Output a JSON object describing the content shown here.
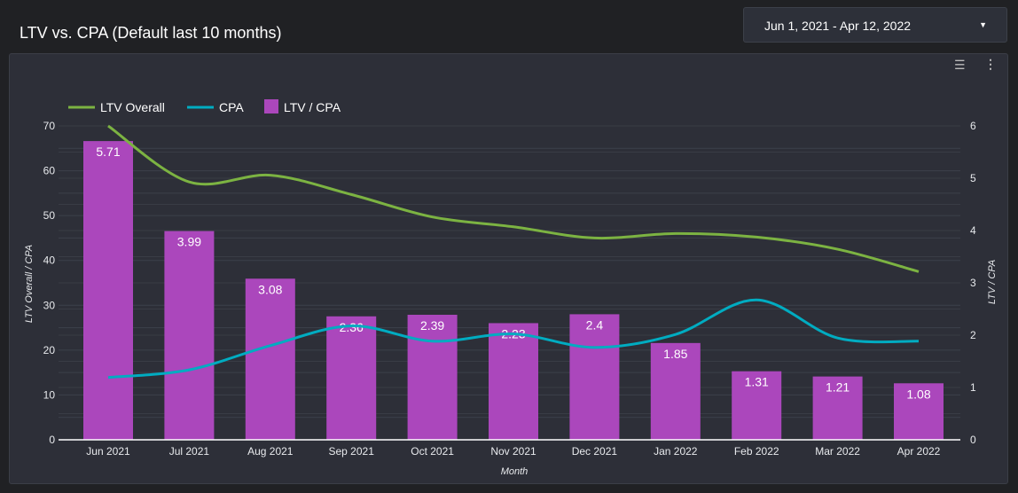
{
  "header": {
    "title": "LTV vs. CPA (Default last 10 months)",
    "date_range": "Jun 1, 2021 - Apr 12, 2022"
  },
  "toolbar": {
    "icons": [
      "filter-icon",
      "more-vert-icon"
    ]
  },
  "colors": {
    "ltv": "#7cb342",
    "cpa": "#00acc1",
    "ratio": "#ab47bc"
  },
  "chart_data": {
    "type": "bar+line",
    "categories": [
      "Jun 2021",
      "Jul 2021",
      "Aug 2021",
      "Sep 2021",
      "Oct 2021",
      "Nov 2021",
      "Dec 2021",
      "Jan 2022",
      "Feb 2022",
      "Mar 2022",
      "Apr 2022"
    ],
    "series": [
      {
        "name": "LTV Overall",
        "type": "line",
        "axis": "left",
        "values": [
          70,
          57.5,
          59,
          54.7,
          49.7,
          47.5,
          45,
          46,
          45.2,
          42.5,
          37.5
        ]
      },
      {
        "name": "CPA",
        "type": "line",
        "axis": "left",
        "values": [
          13.9,
          15.6,
          21,
          25.4,
          22,
          23.6,
          20.6,
          23.5,
          31.2,
          22.7,
          22
        ]
      },
      {
        "name": "LTV / CPA",
        "type": "bar",
        "axis": "right",
        "values": [
          5.71,
          3.99,
          3.08,
          2.36,
          2.39,
          2.23,
          2.4,
          1.85,
          1.31,
          1.21,
          1.08
        ],
        "labels": [
          "5.71",
          "3.99",
          "3.08",
          "2.36",
          "2.39",
          "2.23",
          "2.4",
          "1.85",
          "1.31",
          "1.21",
          "1.08"
        ]
      }
    ],
    "xlabel": "Month",
    "ylabel": "LTV Overall  /  CPA",
    "y2label": "LTV / CPA",
    "ylim": [
      0,
      70
    ],
    "yticks": [
      "0",
      "10",
      "20",
      "30",
      "40",
      "50",
      "60",
      "70"
    ],
    "y2lim": [
      0,
      6
    ],
    "y2ticks": [
      "0",
      "1",
      "2",
      "3",
      "4",
      "5",
      "6"
    ],
    "legend": "top-left",
    "grid": true
  }
}
